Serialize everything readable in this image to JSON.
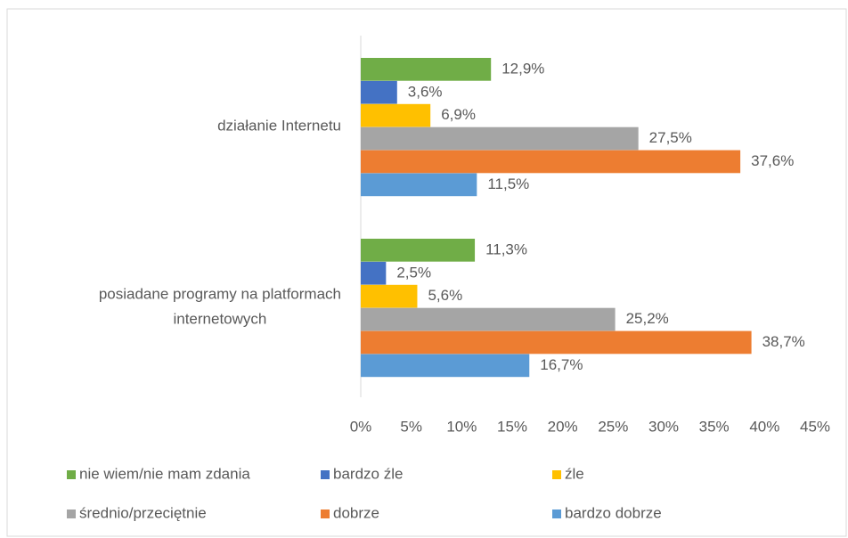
{
  "chart_data": {
    "type": "barh",
    "categories": [
      "działanie Internetu",
      "posiadane programy na platformach internetowych"
    ],
    "series": [
      {
        "name": "nie wiem/nie mam zdania",
        "color": "#70ad47",
        "values": [
          12.9,
          11.3
        ],
        "value_labels": [
          "12,9%",
          "11,3%"
        ]
      },
      {
        "name": "bardzo źle",
        "color": "#4472c4",
        "values": [
          3.6,
          2.5
        ],
        "value_labels": [
          "3,6%",
          "2,5%"
        ]
      },
      {
        "name": "źle",
        "color": "#ffc000",
        "values": [
          6.9,
          5.6
        ],
        "value_labels": [
          "6,9%",
          "5,6%"
        ]
      },
      {
        "name": "średnio/przeciętnie",
        "color": "#a5a5a5",
        "values": [
          27.5,
          25.2
        ],
        "value_labels": [
          "27,5%",
          "25,2%"
        ]
      },
      {
        "name": "dobrze",
        "color": "#ed7d31",
        "values": [
          37.6,
          38.7
        ],
        "value_labels": [
          "37,6%",
          "38,7%"
        ]
      },
      {
        "name": "bardzo dobrze",
        "color": "#5b9bd5",
        "values": [
          11.5,
          16.7
        ],
        "value_labels": [
          "11,5%",
          "16,7%"
        ]
      }
    ],
    "xlim": [
      0,
      45
    ],
    "xticks": [
      {
        "value": 0,
        "label": "0%"
      },
      {
        "value": 5,
        "label": "5%"
      },
      {
        "value": 10,
        "label": "10%"
      },
      {
        "value": 15,
        "label": "15%"
      },
      {
        "value": 20,
        "label": "20%"
      },
      {
        "value": 25,
        "label": "25%"
      },
      {
        "value": 30,
        "label": "30%"
      },
      {
        "value": 35,
        "label": "35%"
      },
      {
        "value": 40,
        "label": "40%"
      },
      {
        "value": 45,
        "label": "45%"
      }
    ],
    "grid": false,
    "legend": "bottom"
  }
}
